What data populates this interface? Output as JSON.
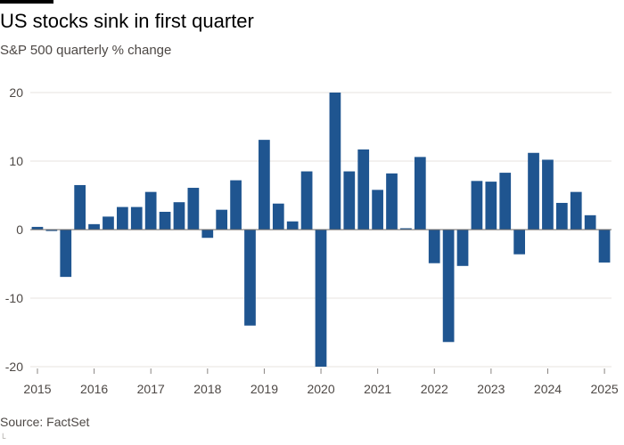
{
  "title": "US stocks sink in first quarter",
  "subtitle": "S&P 500 quarterly % change",
  "source": "Source: FactSet",
  "colors": {
    "bar": "#1f5590",
    "grid": "#e7e3df",
    "zero_line": "#6f6a66",
    "tick_text": "#4d4845"
  },
  "chart_data": {
    "type": "bar",
    "title": "US stocks sink in first quarter",
    "subtitle": "S&P 500 quarterly % change",
    "xlabel": "",
    "ylabel": "",
    "ylim": [
      -20,
      20
    ],
    "y_ticks": [
      20,
      10,
      0,
      -10,
      -20
    ],
    "x_tick_labels": [
      "2015",
      "2016",
      "2017",
      "2018",
      "2019",
      "2020",
      "2021",
      "2022",
      "2023",
      "2024",
      "2025"
    ],
    "grid": true,
    "legend": "none",
    "categories": [
      "2015 Q1",
      "2015 Q2",
      "2015 Q3",
      "2015 Q4",
      "2016 Q1",
      "2016 Q2",
      "2016 Q3",
      "2016 Q4",
      "2017 Q1",
      "2017 Q2",
      "2017 Q3",
      "2017 Q4",
      "2018 Q1",
      "2018 Q2",
      "2018 Q3",
      "2018 Q4",
      "2019 Q1",
      "2019 Q2",
      "2019 Q3",
      "2019 Q4",
      "2020 Q1",
      "2020 Q2",
      "2020 Q3",
      "2020 Q4",
      "2021 Q1",
      "2021 Q2",
      "2021 Q3",
      "2021 Q4",
      "2022 Q1",
      "2022 Q2",
      "2022 Q3",
      "2022 Q4",
      "2023 Q1",
      "2023 Q2",
      "2023 Q3",
      "2023 Q4",
      "2024 Q1",
      "2024 Q2",
      "2024 Q3",
      "2024 Q4",
      "2025 Q1"
    ],
    "values": [
      0.4,
      -0.2,
      -6.9,
      6.5,
      0.8,
      1.9,
      3.3,
      3.3,
      5.5,
      2.6,
      4.0,
      6.1,
      -1.2,
      2.9,
      7.2,
      -14.0,
      13.1,
      3.8,
      1.2,
      8.5,
      -20.0,
      20.0,
      8.5,
      11.7,
      5.8,
      8.2,
      0.2,
      10.6,
      -4.9,
      -16.4,
      -5.3,
      7.1,
      7.0,
      8.3,
      -3.6,
      11.2,
      10.2,
      3.9,
      5.5,
      2.1,
      -4.8
    ]
  }
}
